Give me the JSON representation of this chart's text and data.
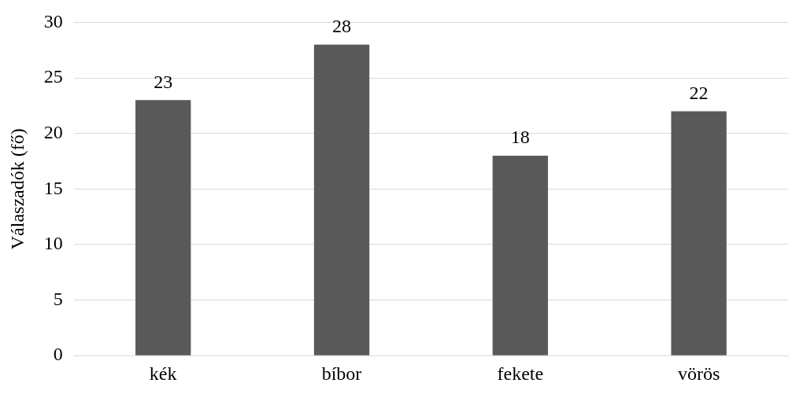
{
  "chart_data": {
    "type": "bar",
    "ylabel": "Válaszadók (fő)",
    "categories": [
      "kék",
      "bíbor",
      "fekete",
      "vörös"
    ],
    "values": [
      23,
      28,
      18,
      22
    ],
    "color": "#595959",
    "ylim": [
      0,
      30
    ],
    "yticks": [
      0,
      5,
      10,
      15,
      20,
      25,
      30
    ],
    "grid": "y",
    "data_labels": true,
    "legend": false
  }
}
